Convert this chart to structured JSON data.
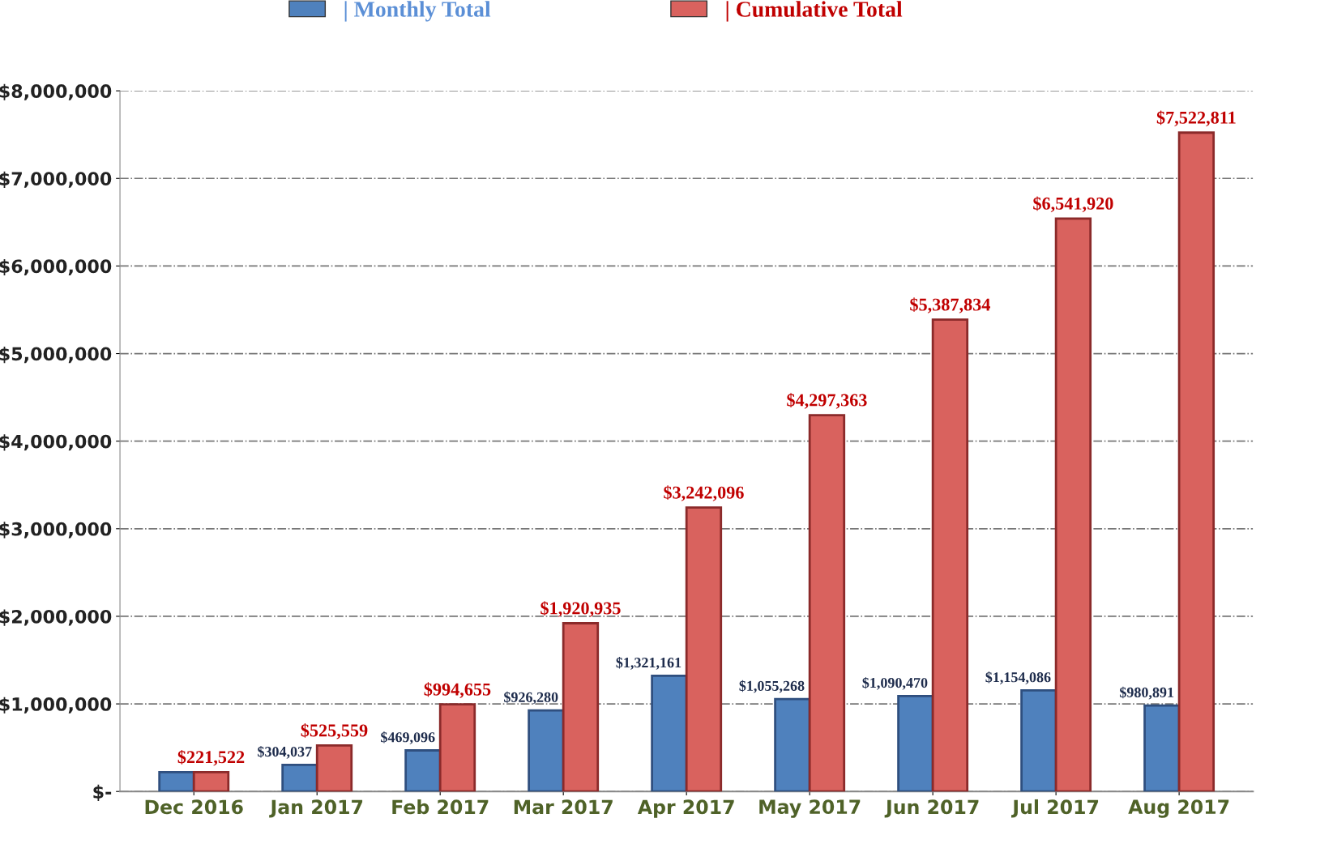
{
  "chart_data": {
    "type": "bar",
    "categories": [
      "Dec 2016",
      "Jan 2017",
      "Feb 2017",
      "Mar 2017",
      "Apr 2017",
      "May 2017",
      "Jun 2017",
      "Jul 2017",
      "Aug 2017"
    ],
    "series": [
      {
        "name": "| Monthly Total",
        "color": "#4f81bd",
        "values": [
          220000,
          304037,
          469096,
          926280,
          1321161,
          1055268,
          1090470,
          1154086,
          980891
        ],
        "value_labels": [
          null,
          "$304,037",
          "$469,096",
          "$926,280",
          "$1,321,161",
          "$1,055,268",
          "$1,090,470",
          "$1,154,086",
          "$980,891"
        ]
      },
      {
        "name": "| Cumulative Total",
        "color": "#d9625e",
        "values": [
          221522,
          525559,
          994655,
          1920935,
          3242096,
          4297363,
          5387834,
          6541920,
          7522811
        ],
        "value_labels": [
          "$221,522",
          "$525,559",
          "$994,655",
          "$1,920,935",
          "$3,242,096",
          "$4,297,363",
          "$5,387,834",
          "$6,541,920",
          "$7,522,811"
        ]
      }
    ],
    "ylim": [
      0,
      8000000
    ],
    "yticks": [
      {
        "value": 0,
        "label": "$-"
      },
      {
        "value": 1000000,
        "label": "$1,000,000"
      },
      {
        "value": 2000000,
        "label": "$2,000,000"
      },
      {
        "value": 3000000,
        "label": "$3,000,000"
      },
      {
        "value": 4000000,
        "label": "$4,000,000"
      },
      {
        "value": 5000000,
        "label": "$5,000,000"
      },
      {
        "value": 6000000,
        "label": "$6,000,000"
      },
      {
        "value": 7000000,
        "label": "$7,000,000"
      },
      {
        "value": 8000000,
        "label": "$8,000,000"
      }
    ],
    "grid": "y",
    "legend": "top"
  }
}
